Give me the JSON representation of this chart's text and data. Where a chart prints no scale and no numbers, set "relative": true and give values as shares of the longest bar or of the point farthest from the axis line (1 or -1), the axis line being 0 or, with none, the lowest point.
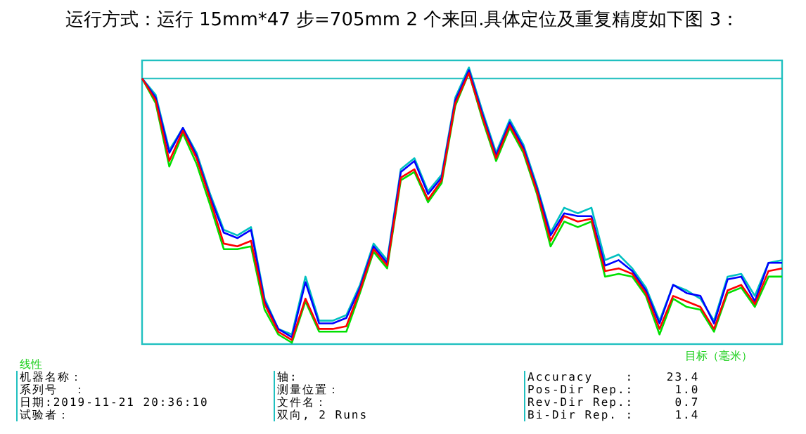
{
  "chart_data": {
    "type": "line",
    "relative": true,
    "title": "运行方式：运行 15mm*47 步=705mm 2 个来回.具体定位及重复精度如下图 3：",
    "xlabel": "目标（毫米）",
    "categories": [
      null,
      null,
      null,
      null,
      null,
      null,
      null,
      null,
      null,
      null,
      null,
      null,
      null,
      null,
      null,
      null,
      null,
      null,
      null,
      null,
      null,
      null,
      null,
      null,
      null,
      null,
      null,
      null,
      null,
      null,
      null,
      null,
      null,
      null,
      null,
      null,
      null,
      null,
      null,
      null,
      null,
      null,
      null,
      null,
      null,
      null,
      null,
      null
    ],
    "grid": false,
    "marker": "none",
    "line_style": "solid",
    "ref_lines": [
      {
        "axis": "y",
        "value": 0.96,
        "color": "#20c0c0"
      }
    ],
    "annotations": [
      "线性",
      "机器名称：",
      "系列号  ：",
      "日期:2019-11-21 20:36:10",
      "试验者：",
      "轴:",
      "测量位置：",
      "文件名：",
      "双向, 2 Runs",
      "Accuracy    :    23.4",
      "Pos-Dir Rep.:     1.0",
      "Rev-Dir Rep.:     0.7",
      "Bi-Dir Rep. :     1.4"
    ],
    "series": [
      {
        "color": "#00e000",
        "values": [
          0.96,
          0.87,
          0.64,
          0.76,
          0.65,
          0.5,
          0.34,
          0.34,
          0.35,
          0.12,
          0.03,
          0,
          0.15,
          0.04,
          0.04,
          0.04,
          0.18,
          0.33,
          0.27,
          0.59,
          0.62,
          0.51,
          0.58,
          0.86,
          0.98,
          0.81,
          0.66,
          0.78,
          0.69,
          0.54,
          0.35,
          0.44,
          0.42,
          0.44,
          0.24,
          0.25,
          0.24,
          0.17,
          0.03,
          0.16,
          0.13,
          0.12,
          0.04,
          0.18,
          0.2,
          0.13,
          0.24,
          0.24
        ]
      },
      {
        "color": "#00c0c0",
        "values": [
          0.96,
          0.9,
          0.7,
          0.78,
          0.69,
          0.54,
          0.41,
          0.39,
          0.42,
          0.16,
          0.05,
          0.03,
          0.24,
          0.08,
          0.08,
          0.1,
          0.21,
          0.36,
          0.3,
          0.63,
          0.67,
          0.55,
          0.61,
          0.89,
          1,
          0.84,
          0.69,
          0.81,
          0.72,
          0.57,
          0.4,
          0.49,
          0.47,
          0.49,
          0.3,
          0.32,
          0.27,
          0.2,
          0.08,
          0.21,
          0.19,
          0.16,
          0.08,
          0.24,
          0.25,
          0.17,
          0.29,
          0.3
        ]
      },
      {
        "color": "#0000ff",
        "values": [
          0.96,
          0.89,
          0.69,
          0.78,
          0.68,
          0.53,
          0.4,
          0.38,
          0.41,
          0.15,
          0.05,
          0.02,
          0.22,
          0.07,
          0.07,
          0.09,
          0.2,
          0.35,
          0.29,
          0.62,
          0.66,
          0.54,
          0.6,
          0.88,
          0.99,
          0.83,
          0.68,
          0.8,
          0.71,
          0.56,
          0.39,
          0.47,
          0.46,
          0.46,
          0.28,
          0.3,
          0.26,
          0.19,
          0.07,
          0.21,
          0.18,
          0.17,
          0.07,
          0.23,
          0.24,
          0.15,
          0.29,
          0.29
        ]
      },
      {
        "color": "#ff0000",
        "values": [
          0.96,
          0.88,
          0.66,
          0.77,
          0.67,
          0.52,
          0.36,
          0.35,
          0.37,
          0.14,
          0.04,
          0.01,
          0.16,
          0.05,
          0.05,
          0.06,
          0.19,
          0.34,
          0.28,
          0.6,
          0.63,
          0.52,
          0.59,
          0.87,
          0.98,
          0.82,
          0.67,
          0.79,
          0.7,
          0.55,
          0.37,
          0.46,
          0.44,
          0.45,
          0.26,
          0.27,
          0.25,
          0.18,
          0.05,
          0.17,
          0.15,
          0.13,
          0.05,
          0.19,
          0.21,
          0.14,
          0.26,
          0.27
        ]
      }
    ]
  }
}
